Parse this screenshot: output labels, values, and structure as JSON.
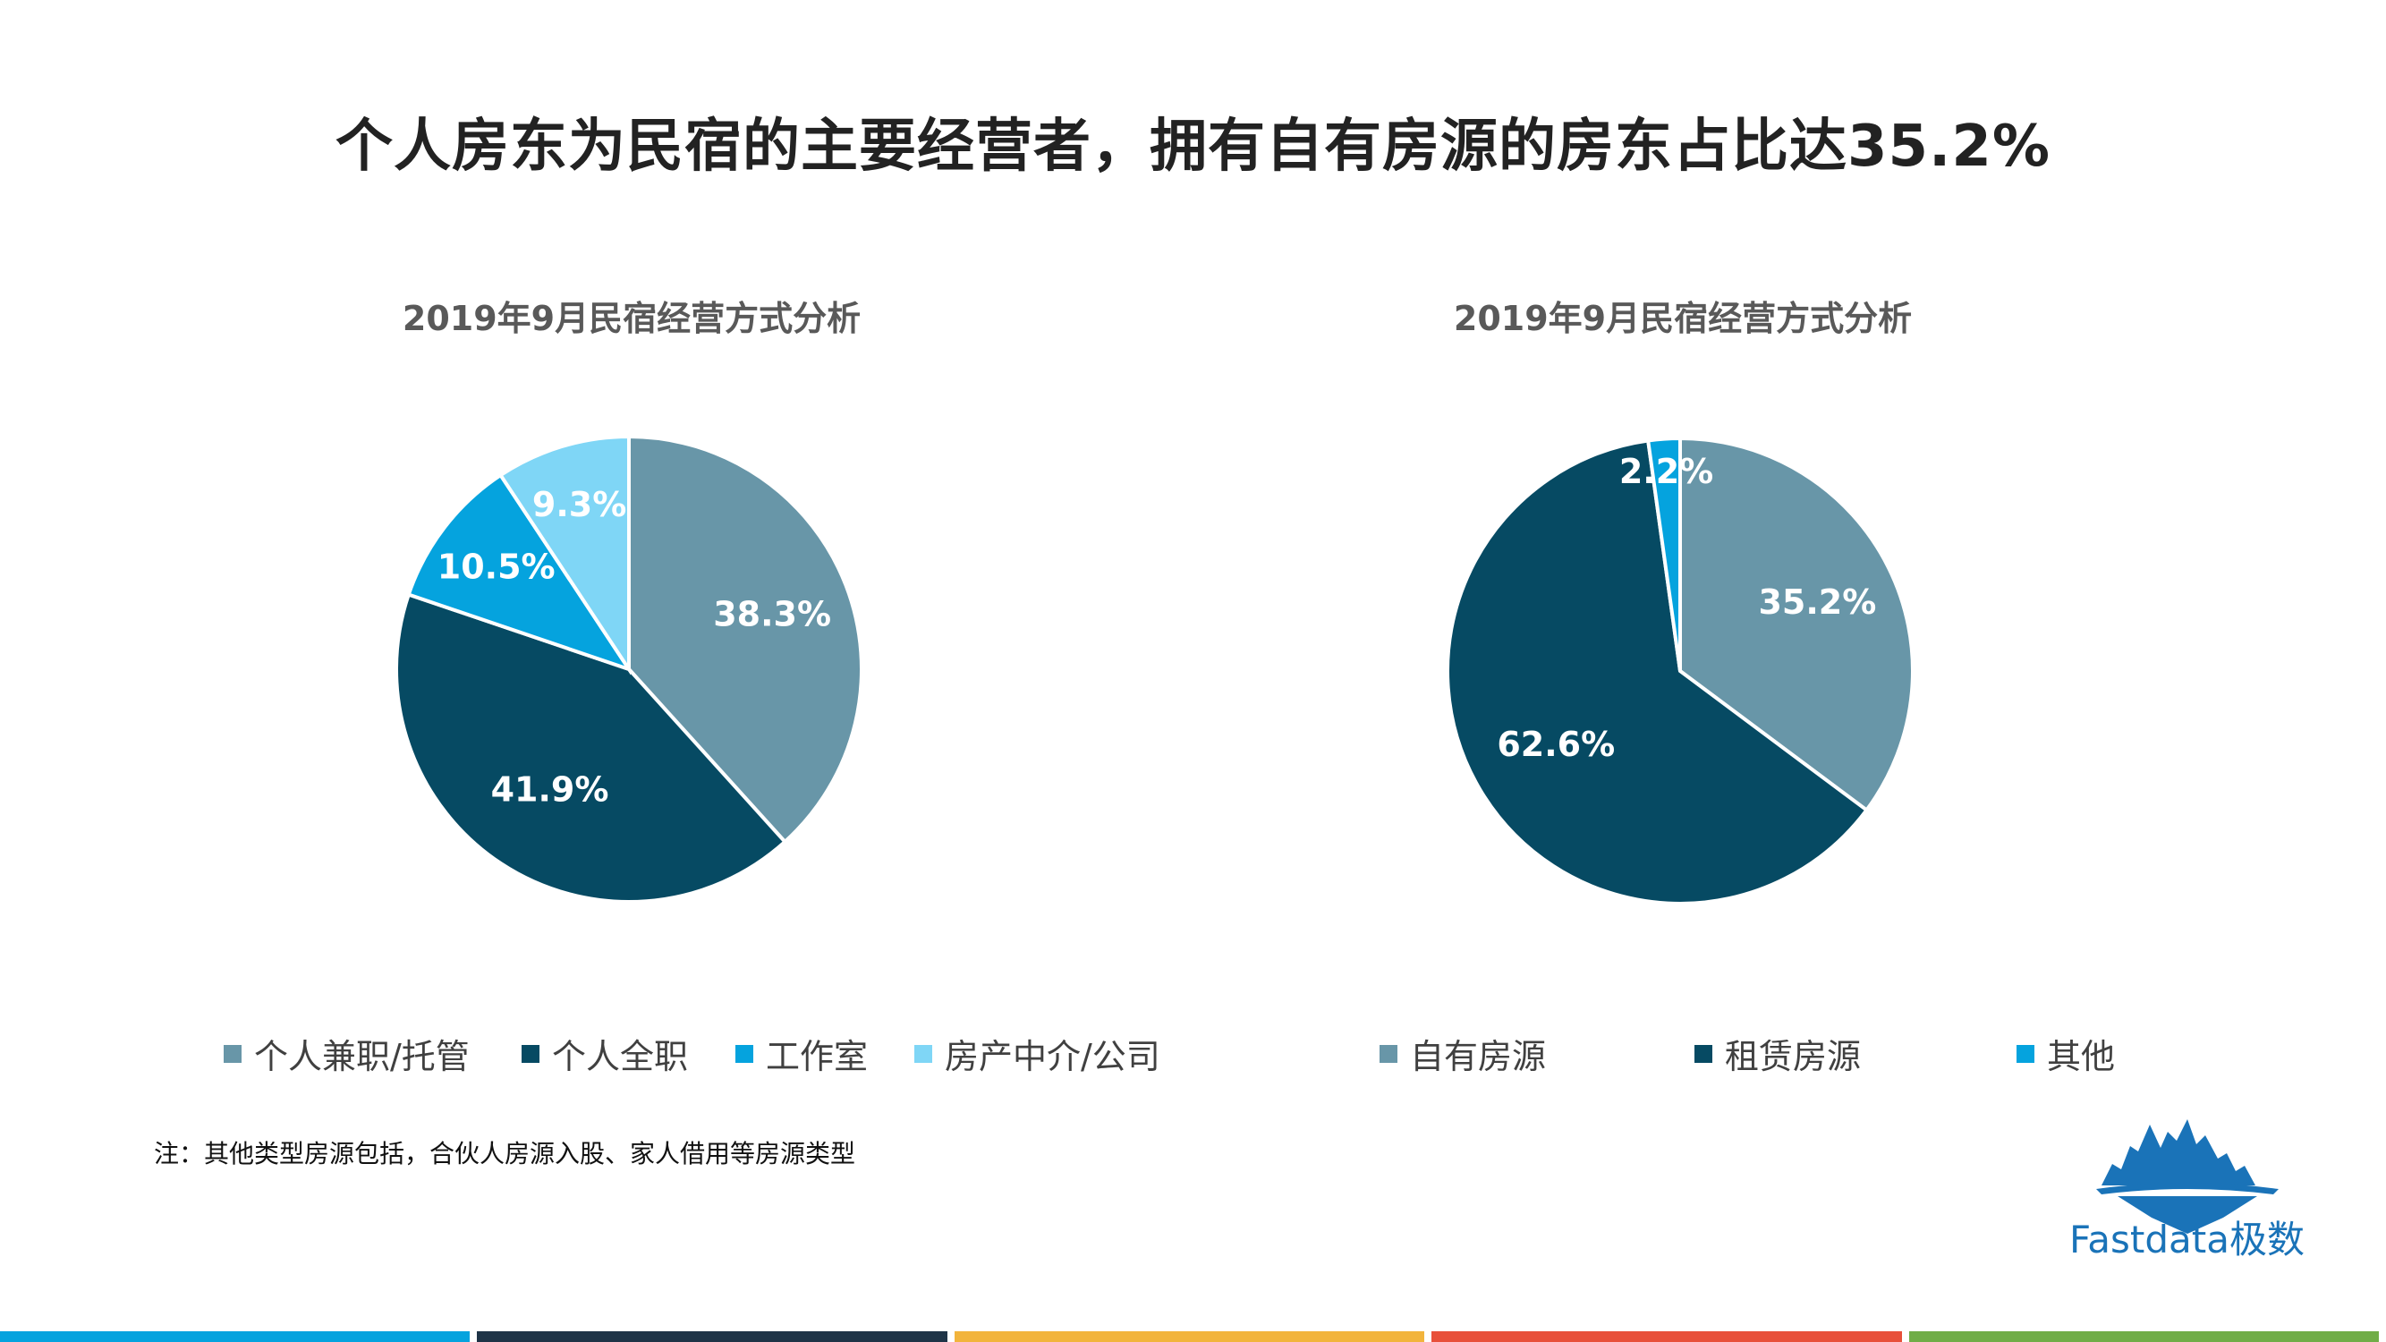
{
  "title": "个人房东为民宿的主要经营者，拥有自有房源的房东占比达35.2%",
  "chart_data": [
    {
      "type": "pie",
      "title": "2019年9月民宿经营方式分析",
      "slices": [
        {
          "name": "个人兼职/托管",
          "value": 38.3,
          "label": "38.3%",
          "color": "#6896a8"
        },
        {
          "name": "个人全职",
          "value": 41.9,
          "label": "41.9%",
          "color": "#064a63"
        },
        {
          "name": "工作室",
          "value": 10.5,
          "label": "10.5%",
          "color": "#05a3de"
        },
        {
          "name": "房产中介/公司",
          "value": 9.3,
          "label": "9.3%",
          "color": "#7fd6f6"
        }
      ],
      "legend_position": "bottom"
    },
    {
      "type": "pie",
      "title": "2019年9月民宿经营方式分析",
      "slices": [
        {
          "name": "自有房源",
          "value": 35.2,
          "label": "35.2%",
          "color": "#6896a8"
        },
        {
          "name": "租赁房源",
          "value": 62.6,
          "label": "62.6%",
          "color": "#064a63"
        },
        {
          "name": "其他",
          "value": 2.2,
          "label": "2.2%",
          "color": "#05a3de"
        }
      ],
      "legend_position": "bottom"
    }
  ],
  "note": "注：其他类型房源包括，合伙人房源入股、家人借用等房源类型",
  "logo": {
    "text": "Fastdata极数",
    "icon": "iceberg-logo-icon",
    "color": "#1a73b8"
  },
  "footer_colors": [
    "#05a3de",
    "#1f3447",
    "#f2b43c",
    "#e8503a",
    "#70ad47"
  ]
}
